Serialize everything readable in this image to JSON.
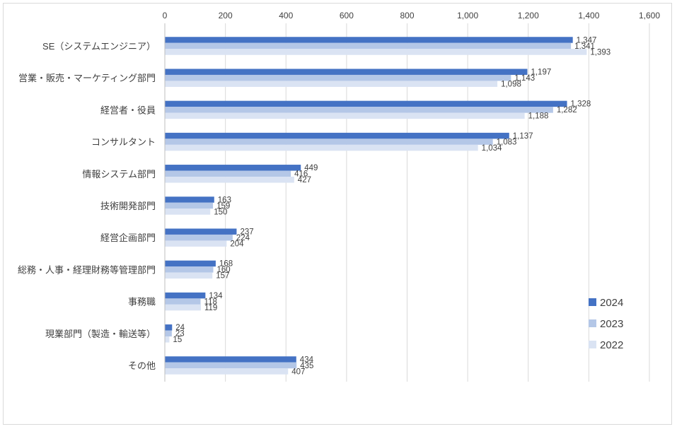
{
  "chart_data": {
    "type": "bar",
    "orientation": "horizontal",
    "title": "",
    "xlabel": "",
    "ylabel": "",
    "xlim": [
      0,
      1600
    ],
    "x_ticks": [
      "0",
      "200",
      "400",
      "600",
      "800",
      "1,000",
      "1,200",
      "1,400",
      "1,600"
    ],
    "grid": true,
    "legend_position": "bottom-right",
    "categories": [
      "SE（システムエンジニア）",
      "営業・販売・マーケティング部門",
      "経営者・役員",
      "コンサルタント",
      "情報システム部門",
      "技術開発部門",
      "経営企画部門",
      "総務・人事・経理財務等管理部門",
      "事務職",
      "現業部門（製造・輸送等）",
      "その他"
    ],
    "series": [
      {
        "name": "2024",
        "color": "#4472c4",
        "values": [
          1347,
          1197,
          1328,
          1137,
          449,
          163,
          237,
          168,
          134,
          24,
          434
        ],
        "labels": [
          "1,347",
          "1,197",
          "1,328",
          "1,137",
          "449",
          "163",
          "237",
          "168",
          "134",
          "24",
          "434"
        ]
      },
      {
        "name": "2023",
        "color": "#b4c7e7",
        "values": [
          1341,
          1143,
          1282,
          1083,
          416,
          159,
          224,
          160,
          118,
          23,
          435
        ],
        "labels": [
          "1,341",
          "1,143",
          "1,282",
          "1,083",
          "416",
          "159",
          "224",
          "160",
          "118",
          "23",
          "435"
        ]
      },
      {
        "name": "2022",
        "color": "#dae3f3",
        "values": [
          1393,
          1098,
          1188,
          1034,
          427,
          150,
          204,
          157,
          119,
          15,
          407
        ],
        "labels": [
          "1,393",
          "1,098",
          "1,188",
          "1,034",
          "427",
          "150",
          "204",
          "157",
          "119",
          "15",
          "407"
        ]
      }
    ]
  }
}
